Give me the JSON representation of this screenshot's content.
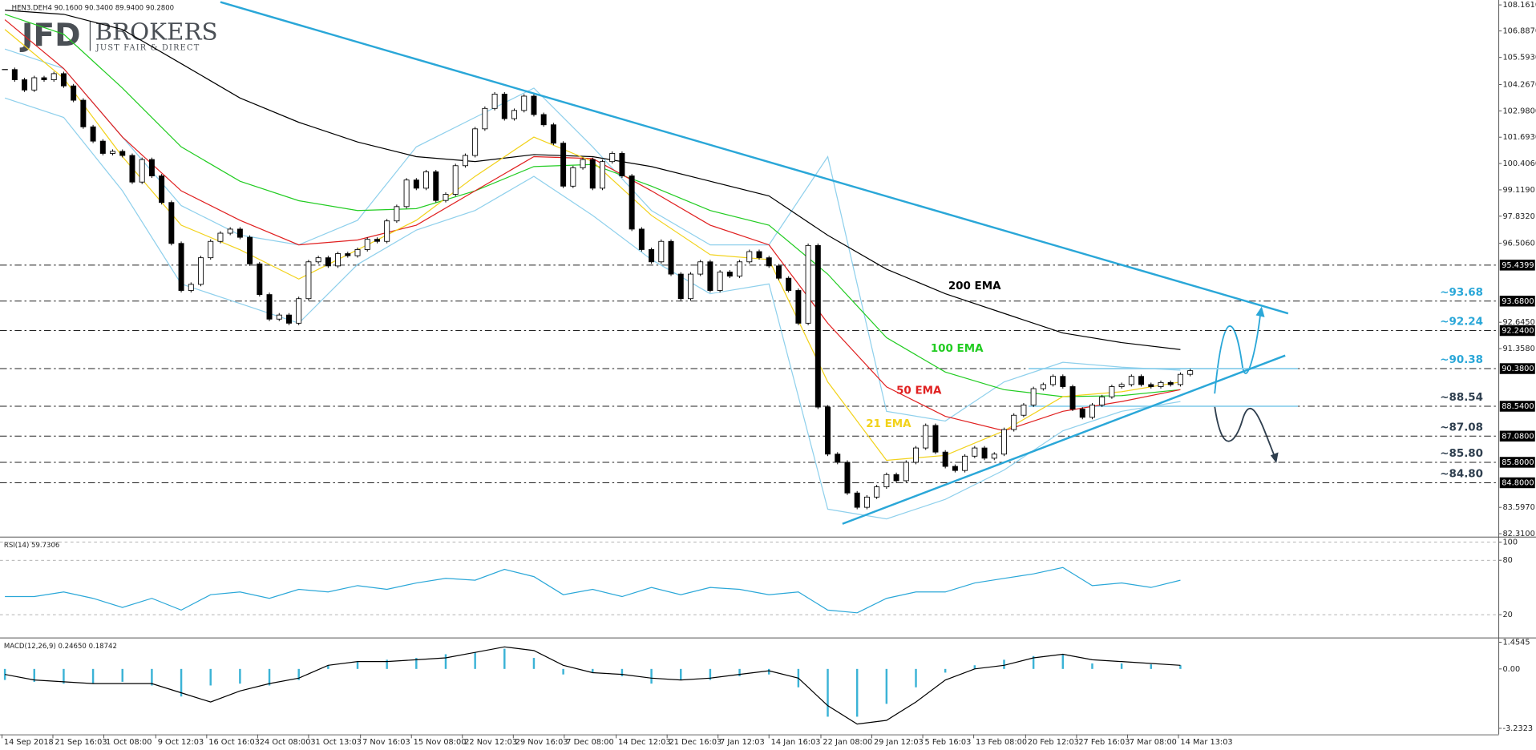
{
  "logo": {
    "brand": "JFD",
    "name": "BROKERS",
    "tagline": "JUST FAIR & DIRECT"
  },
  "chart_data": [
    {
      "type": "candlestick",
      "title": "HEN3.DEH4 90.1600 90.3400 89.9400 90.2800",
      "xlim": [
        -0.5,
        152.5
      ],
      "ylim": [
        82.17,
        108.4
      ],
      "yticks": [
        {
          "value": 108.161,
          "label": "108.1610"
        },
        {
          "value": 106.887,
          "label": "106.8870"
        },
        {
          "value": 105.593,
          "label": "105.5930"
        },
        {
          "value": 104.267,
          "label": "104.2670"
        },
        {
          "value": 102.98,
          "label": "102.9800"
        },
        {
          "value": 101.693,
          "label": "101.6930"
        },
        {
          "value": 100.406,
          "label": "100.4060"
        },
        {
          "value": 99.119,
          "label": "99.1190"
        },
        {
          "value": 97.832,
          "label": "97.8320"
        },
        {
          "value": 96.506,
          "label": "96.5060"
        },
        {
          "value": 92.645,
          "label": "92.6450"
        },
        {
          "value": 91.358,
          "label": "91.3580"
        },
        {
          "value": 83.597,
          "label": "83.5970"
        },
        {
          "value": 82.31,
          "label": "82.3100"
        }
      ],
      "series": [
        {
          "up_color": "#ffffff",
          "down_color": "#000000",
          "values": [
            105,
            104.5,
            104,
            104.6,
            104.5,
            104.8,
            104.2,
            103.5,
            102.2,
            101.5,
            100.9,
            101,
            100.8,
            99.5,
            100.6,
            99.8,
            98.5,
            96.5,
            94.2,
            94.5,
            95.8,
            96.6,
            97,
            97.2,
            96.8,
            95.5,
            94,
            92.8,
            93,
            92.6,
            93.8,
            95.6,
            95.8,
            95.4,
            96,
            95.9,
            96.2,
            96.7,
            96.6,
            97.6,
            98.3,
            99.6,
            99.2,
            100,
            98.6,
            98.9,
            100.3,
            100.8,
            102.1,
            103.1,
            103.8,
            102.6,
            103,
            103.7,
            102.8,
            102.3,
            101.4,
            99.3,
            100.2,
            100.6,
            99.2,
            100.5,
            100.9,
            99.8,
            97.2,
            96.2,
            95.6,
            96.6,
            95,
            93.8,
            95,
            95.6,
            94.2,
            95.1,
            94.9,
            95.6,
            96.1,
            95.8,
            95.4,
            94.8,
            94.2,
            92.6,
            96.4,
            88.5,
            86.2,
            85.8,
            84.3,
            83.6,
            84.1,
            84.6,
            85.2,
            84.9,
            85.8,
            86.5,
            87.6,
            86.3,
            85.6,
            85.4,
            86.1,
            86.5,
            86,
            86.2,
            87.4,
            88.1,
            88.6,
            89.4,
            89.6,
            90,
            89.5,
            88.4,
            88,
            88.6,
            89,
            89.5,
            89.6,
            90,
            89.6,
            89.5,
            89.7,
            89.6,
            90.1,
            90.28
          ]
        }
      ],
      "overlays": [
        {
          "name": "200 EMA",
          "color": "#000000",
          "x": [
            0,
            6,
            12,
            18,
            24,
            30,
            36,
            42,
            48,
            54,
            60,
            66,
            72,
            78,
            84,
            90,
            96,
            102,
            108,
            114,
            120
          ],
          "values": [
            107.9,
            107.7,
            106.96,
            105.29,
            103.61,
            102.42,
            101.46,
            100.74,
            100.5,
            100.84,
            100.74,
            100.26,
            99.54,
            98.82,
            96.9,
            95.24,
            94.04,
            93.08,
            92.12,
            91.65,
            91.31
          ]
        },
        {
          "name": "100 EMA",
          "color": "#22cc22",
          "x": [
            0,
            6,
            12,
            18,
            24,
            30,
            36,
            42,
            48,
            54,
            60,
            66,
            72,
            78,
            84,
            90,
            96,
            102,
            108,
            114,
            120
          ],
          "values": [
            107.7,
            106.73,
            104.09,
            101.22,
            99.54,
            98.59,
            98.11,
            98.2,
            99.07,
            100.26,
            100.36,
            99.3,
            98.11,
            97.39,
            95.0,
            91.89,
            90.21,
            89.35,
            89.01,
            89.06,
            89.35
          ]
        },
        {
          "name": "50 EMA",
          "color": "#e02020",
          "x": [
            0,
            6,
            12,
            18,
            24,
            30,
            36,
            42,
            48,
            54,
            60,
            66,
            72,
            78,
            84,
            90,
            96,
            102,
            108,
            114,
            120
          ],
          "values": [
            107.44,
            105.05,
            101.7,
            99.07,
            97.63,
            96.43,
            96.67,
            97.39,
            99.07,
            100.74,
            100.65,
            99.07,
            97.39,
            96.43,
            92.6,
            89.49,
            88.05,
            87.34,
            88.29,
            88.77,
            89.35
          ]
        },
        {
          "name": "21 EMA",
          "color": "#f2d21b",
          "x": [
            0,
            6,
            12,
            18,
            24,
            30,
            36,
            42,
            48,
            54,
            60,
            66,
            72,
            78,
            84,
            90,
            96,
            102,
            108,
            114,
            120
          ],
          "values": [
            106.96,
            104.57,
            100.74,
            97.39,
            96.19,
            94.76,
            96.19,
            97.63,
            99.78,
            101.7,
            100.5,
            97.87,
            95.95,
            95.71,
            89.73,
            85.9,
            86.14,
            87.34,
            89.01,
            89.25,
            89.73
          ]
        }
      ],
      "bands": [
        {
          "color": "#8fd0ec",
          "x": [
            0,
            6,
            12,
            18,
            24,
            30,
            36,
            42,
            48,
            54,
            60,
            66,
            72,
            78,
            84,
            90,
            96,
            102,
            108,
            114,
            120
          ],
          "values": [
            106.0,
            105.05,
            101.7,
            98.35,
            96.91,
            96.43,
            97.63,
            101.22,
            102.66,
            104.09,
            101.22,
            98.11,
            96.43,
            96.43,
            100.74,
            88.29,
            87.82,
            89.73,
            90.69,
            90.45,
            90.3
          ]
        },
        {
          "color": "#8fd0ec",
          "x": [
            0,
            6,
            12,
            18,
            24,
            30,
            36,
            42,
            48,
            54,
            60,
            66,
            72,
            78,
            84,
            90,
            96,
            102,
            108,
            114,
            120
          ],
          "values": [
            103.61,
            102.66,
            99.07,
            94.52,
            93.56,
            92.6,
            95.47,
            97.15,
            98.11,
            99.78,
            97.87,
            95.71,
            94.04,
            94.52,
            83.51,
            83.03,
            83.99,
            85.42,
            87.34,
            88.29,
            88.77
          ]
        }
      ],
      "trendlines": [
        {
          "color": "#2aa7d8",
          "x": [
            22,
            131
          ],
          "values": [
            108.3,
            93.08
          ]
        },
        {
          "color": "#2aa7d8",
          "x": [
            85.5,
            130.7
          ],
          "values": [
            82.79,
            91.02
          ]
        }
      ],
      "levels": [
        {
          "value": 95.4399,
          "label": "95.4399"
        },
        {
          "value": 93.68,
          "label": "93.6800",
          "note": "~93.68",
          "note_color": "#2aa7d8"
        },
        {
          "value": 92.24,
          "label": "92.2400",
          "note": "~92.24",
          "note_color": "#2aa7d8"
        },
        {
          "value": 90.38,
          "label": "90.3800",
          "note": "~90.38",
          "note_color": "#2aa7d8"
        },
        {
          "value": 88.54,
          "label": "88.5400",
          "note": "~88.54",
          "note_color": "#2f3f4f"
        },
        {
          "value": 87.08,
          "label": "87.0800",
          "note": "~87.08",
          "note_color": "#2f3f4f"
        },
        {
          "value": 85.8,
          "label": "85.8000",
          "note": "~85.80",
          "note_color": "#2f3f4f"
        },
        {
          "value": 84.8,
          "label": "84.8000",
          "note": "~84.80",
          "note_color": "#2f3f4f"
        }
      ]
    },
    {
      "type": "line",
      "title": "RSI(14) 59.7306",
      "xlim": [
        -0.5,
        152.5
      ],
      "ylim": [
        -4,
        104
      ],
      "yticks": [
        100,
        80,
        20
      ],
      "x": [
        0,
        3,
        6,
        9,
        12,
        15,
        18,
        21,
        24,
        27,
        30,
        33,
        36,
        39,
        42,
        45,
        48,
        51,
        54,
        57,
        60,
        63,
        66,
        69,
        72,
        75,
        78,
        81,
        84,
        87,
        90,
        93,
        96,
        99,
        102,
        105,
        108,
        111,
        114,
        117,
        120
      ],
      "series": [
        {
          "color": "#2aa7d8",
          "values": [
            40,
            40,
            45,
            38,
            28,
            38,
            25,
            42,
            45,
            38,
            48,
            45,
            52,
            48,
            55,
            60,
            58,
            70,
            62,
            42,
            48,
            40,
            50,
            42,
            50,
            48,
            42,
            45,
            25,
            22,
            38,
            45,
            45,
            55,
            60,
            65,
            72,
            52,
            55,
            50,
            58
          ]
        }
      ]
    },
    {
      "type": "macd",
      "title": "MACD(12,26,9) 0.24650 0.18742",
      "xlim": [
        -0.5,
        152.5
      ],
      "ylim": [
        -3.56,
        1.61
      ],
      "yticks": [
        1.4545,
        {
          "value": 0,
          "label": "0.00"
        },
        -3.2323
      ],
      "x": [
        0,
        3,
        6,
        9,
        12,
        15,
        18,
        21,
        24,
        27,
        30,
        33,
        36,
        39,
        42,
        45,
        48,
        51,
        54,
        57,
        60,
        63,
        66,
        69,
        72,
        75,
        78,
        81,
        84,
        87,
        90,
        93,
        96,
        99,
        102,
        105,
        108,
        111,
        114,
        117,
        120
      ],
      "xticks": [
        {
          "value": -0.3,
          "label": "14 Sep 2018"
        },
        {
          "value": 4.9,
          "label": "21 Sep 16:03"
        },
        {
          "value": 10.1,
          "label": "1 Oct 08:00"
        },
        {
          "value": 15.4,
          "label": "9 Oct 12:03"
        },
        {
          "value": 20.6,
          "label": "16 Oct 16:03"
        },
        {
          "value": 25.8,
          "label": "24 Oct 08:00"
        },
        {
          "value": 31.0,
          "label": "31 Oct 13:03"
        },
        {
          "value": 36.3,
          "label": "7 Nov 16:03"
        },
        {
          "value": 41.5,
          "label": "15 Nov 08:00"
        },
        {
          "value": 46.7,
          "label": "22 Nov 12:03"
        },
        {
          "value": 51.9,
          "label": "29 Nov 16:03"
        },
        {
          "value": 57.1,
          "label": "7 Dec 08:00"
        },
        {
          "value": 62.4,
          "label": "14 Dec 12:03"
        },
        {
          "value": 67.6,
          "label": "21 Dec 16:03"
        },
        {
          "value": 72.8,
          "label": "7 Jan 12:03"
        },
        {
          "value": 78.0,
          "label": "14 Jan 16:03"
        },
        {
          "value": 83.3,
          "label": "22 Jan 08:00"
        },
        {
          "value": 88.5,
          "label": "29 Jan 12:03"
        },
        {
          "value": 93.7,
          "label": "5 Feb 16:03"
        },
        {
          "value": 98.9,
          "label": "13 Feb 08:00"
        },
        {
          "value": 104.2,
          "label": "20 Feb 12:03"
        },
        {
          "value": 109.4,
          "label": "27 Feb 16:03"
        },
        {
          "value": 114.6,
          "label": "7 Mar 08:00"
        },
        {
          "value": 119.8,
          "label": "14 Mar 13:03"
        }
      ],
      "series": [
        {
          "kind": "bar",
          "color": "#3bb3d6",
          "values": [
            -0.6,
            -0.7,
            -0.8,
            -0.8,
            -0.7,
            -0.9,
            -1.5,
            -0.9,
            -0.8,
            -0.9,
            -0.6,
            0.2,
            0.4,
            0.5,
            0.6,
            0.8,
            0.9,
            1.1,
            0.6,
            -0.3,
            -0.2,
            -0.4,
            -0.8,
            -0.6,
            -0.6,
            -0.4,
            -0.3,
            -1.0,
            -2.6,
            -2.6,
            -1.9,
            -1.0,
            -0.2,
            0.2,
            0.5,
            0.7,
            0.8,
            0.3,
            0.3,
            0.25,
            0.2
          ]
        },
        {
          "kind": "line",
          "color": "#000000",
          "values": [
            -0.3,
            -0.6,
            -0.7,
            -0.8,
            -0.8,
            -0.8,
            -1.3,
            -1.8,
            -1.2,
            -0.8,
            -0.5,
            0.2,
            0.4,
            0.4,
            0.5,
            0.6,
            0.9,
            1.2,
            1.0,
            0.2,
            -0.2,
            -0.3,
            -0.5,
            -0.6,
            -0.5,
            -0.3,
            -0.1,
            -0.5,
            -2.0,
            -3.0,
            -2.8,
            -1.8,
            -0.6,
            0.0,
            0.2,
            0.6,
            0.8,
            0.5,
            0.4,
            0.3,
            0.2
          ]
        }
      ]
    }
  ]
}
